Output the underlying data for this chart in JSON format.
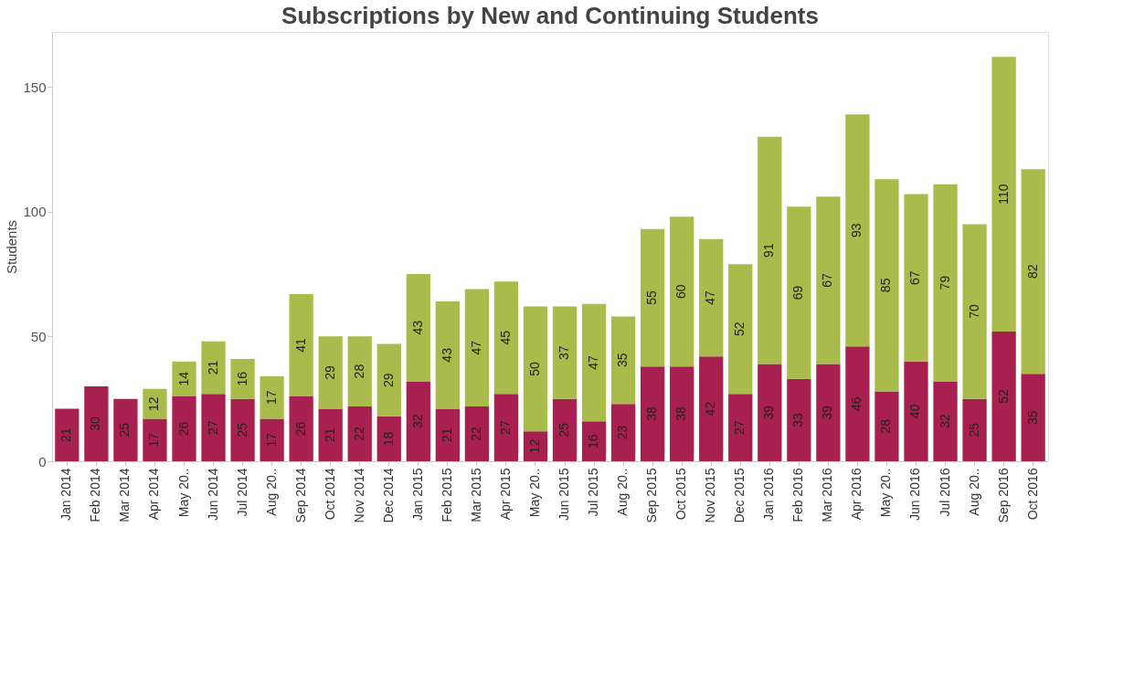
{
  "chart_data": {
    "type": "bar",
    "title": "Subscriptions by New and Continuing Students",
    "ylabel": "Students",
    "categories": [
      "Jan 2014",
      "Feb 2014",
      "Mar 2014",
      "Apr 2014",
      "May 20..",
      "Jun 2014",
      "Jul 2014",
      "Aug 20..",
      "Sep 2014",
      "Oct 2014",
      "Nov 2014",
      "Dec 2014",
      "Jan 2015",
      "Feb 2015",
      "Mar 2015",
      "Apr 2015",
      "May 20..",
      "Jun 2015",
      "Jul 2015",
      "Aug 20..",
      "Sep 2015",
      "Oct 2015",
      "Nov 2015",
      "Dec 2015",
      "Jan 2016",
      "Feb 2016",
      "Mar 2016",
      "Apr 2016",
      "May 20..",
      "Jun 2016",
      "Jul 2016",
      "Aug 20..",
      "Sep 2016",
      "Oct 2016"
    ],
    "series": [
      {
        "color": "#a8204f",
        "values": [
          21,
          30,
          25,
          17,
          26,
          27,
          25,
          17,
          26,
          21,
          22,
          18,
          32,
          21,
          22,
          27,
          12,
          25,
          16,
          23,
          38,
          38,
          42,
          27,
          39,
          33,
          39,
          46,
          28,
          40,
          32,
          25,
          52,
          35
        ]
      },
      {
        "color": "#a9bb4b",
        "values": [
          null,
          null,
          null,
          12,
          14,
          21,
          16,
          17,
          41,
          29,
          28,
          29,
          43,
          43,
          47,
          45,
          50,
          37,
          47,
          35,
          55,
          60,
          47,
          52,
          91,
          69,
          67,
          93,
          85,
          67,
          79,
          70,
          110,
          82
        ]
      }
    ],
    "stacked": true,
    "data_labels": true,
    "ylim": [
      0,
      172
    ],
    "yticks": [
      0,
      50,
      100,
      150
    ],
    "grid": false
  }
}
